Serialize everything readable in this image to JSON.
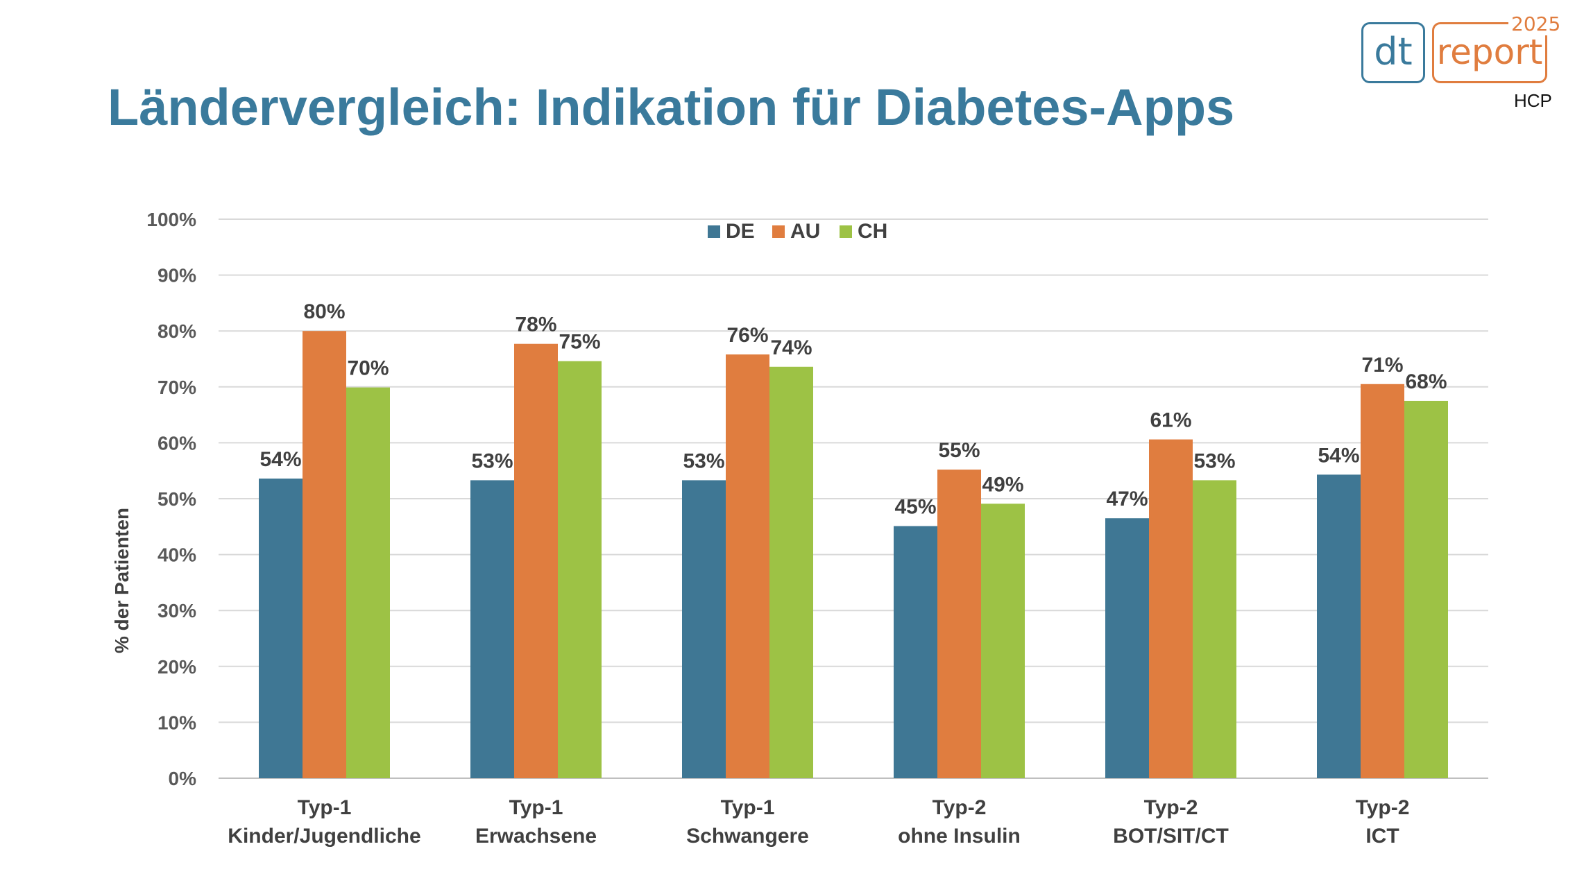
{
  "slide": {
    "title": "Ländervergleich: Indikation für Diabetes-Apps",
    "logo": {
      "dt": "dt",
      "report": "report",
      "year": "2025",
      "sub": "HCP"
    }
  },
  "colors": {
    "DE": "#3f7794",
    "AU": "#e07d3f",
    "CH": "#9dc245",
    "title": "#3a7a9c"
  },
  "chart_data": {
    "type": "bar",
    "title": "",
    "ylabel": "% der Patienten",
    "xlabel": "",
    "ylim": [
      0,
      100
    ],
    "yticks": [
      0,
      10,
      20,
      30,
      40,
      50,
      60,
      70,
      80,
      90,
      100
    ],
    "ytick_labels": [
      "0%",
      "10%",
      "20%",
      "30%",
      "40%",
      "50%",
      "60%",
      "70%",
      "80%",
      "90%",
      "100%"
    ],
    "grid": true,
    "legend": "top-center",
    "categories": [
      [
        "Typ-1",
        "Kinder/Jugendliche"
      ],
      [
        "Typ-1",
        "Erwachsene"
      ],
      [
        "Typ-1",
        "Schwangere"
      ],
      [
        "Typ-2",
        "ohne Insulin"
      ],
      [
        "Typ-2",
        "BOT/SIT/CT"
      ],
      [
        "Typ-2",
        "ICT"
      ]
    ],
    "series": [
      {
        "name": "DE",
        "values": [
          53.6,
          53.3,
          53.3,
          45.1,
          46.5,
          54.3
        ],
        "labels": [
          "54%",
          "53%",
          "53%",
          "45%",
          "47%",
          "54%"
        ]
      },
      {
        "name": "AU",
        "values": [
          80.0,
          77.7,
          75.8,
          55.2,
          60.6,
          70.5
        ],
        "labels": [
          "80%",
          "78%",
          "76%",
          "55%",
          "61%",
          "71%"
        ]
      },
      {
        "name": "CH",
        "values": [
          69.9,
          74.6,
          73.6,
          49.1,
          53.3,
          67.5
        ],
        "labels": [
          "70%",
          "75%",
          "74%",
          "49%",
          "53%",
          "68%"
        ]
      }
    ]
  }
}
